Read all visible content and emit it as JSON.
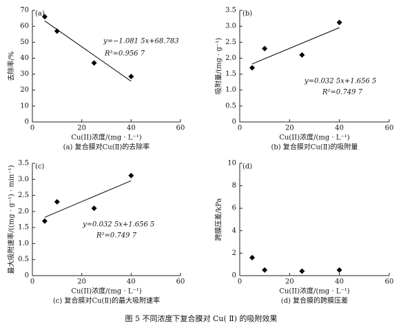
{
  "chart_data": [
    {
      "type": "scatter",
      "panel": "(a)",
      "xlabel": "Cu(II)浓度/(mg · L⁻¹)",
      "ylabel": "去除率/%",
      "caption": "(a) 复合膜对Cu(Ⅱ)的去除率",
      "x": [
        5,
        10,
        25,
        40
      ],
      "values": [
        66,
        57,
        37,
        28.5
      ],
      "color": "#000000",
      "xlim": [
        0,
        60
      ],
      "xticks": [
        0,
        20,
        40,
        60
      ],
      "ylim": [
        0,
        70
      ],
      "yticks": [
        0,
        10,
        20,
        30,
        40,
        50,
        60,
        70
      ],
      "trendline": {
        "x": [
          5,
          40
        ],
        "y": [
          63.38,
          25.52
        ]
      },
      "annotations": [
        "y=−1.081 5x+68.783",
        "R²=0.956 7"
      ]
    },
    {
      "type": "scatter",
      "panel": "(b)",
      "xlabel": "Cu(II)浓度/(mg · L⁻¹)",
      "ylabel": "吸附量/(mg · g⁻¹)",
      "caption": "(b) 复合膜对Cu(Ⅱ)的吸附量",
      "x": [
        5,
        10,
        25,
        40
      ],
      "values": [
        1.7,
        2.3,
        2.1,
        3.12
      ],
      "color": "#000000",
      "xlim": [
        0,
        60
      ],
      "xticks": [
        0,
        20,
        40,
        60
      ],
      "ylim": [
        0,
        3.5
      ],
      "yticks": [
        0,
        0.5,
        {
          "value": 1,
          "label": "1.0"
        },
        1.5,
        {
          "value": 2,
          "label": "2.0"
        },
        2.5,
        {
          "value": 3,
          "label": "3.0"
        },
        3.5
      ],
      "trendline": {
        "x": [
          5,
          40
        ],
        "y": [
          1.819,
          2.957
        ]
      },
      "annotations": [
        "y=0.032 5x+1.656 5",
        "R²=0.749 7"
      ]
    },
    {
      "type": "scatter",
      "panel": "(c)",
      "xlabel": "Cu(II)浓度/(mg · L⁻¹)",
      "ylabel": "最大吸附速率/((mg · g⁻¹) · min⁻¹)",
      "caption": "(c) 复合膜对Cu(Ⅱ)的最大吸附速率",
      "x": [
        5,
        10,
        25,
        40
      ],
      "values": [
        1.7,
        2.3,
        2.1,
        3.12
      ],
      "color": "#000000",
      "xlim": [
        0,
        60
      ],
      "xticks": [
        0,
        20,
        40,
        60
      ],
      "ylim": [
        0,
        3.5
      ],
      "yticks": [
        0,
        0.5,
        {
          "value": 1,
          "label": "1.0"
        },
        1.5,
        {
          "value": 2,
          "label": "2.0"
        },
        2.5,
        {
          "value": 3,
          "label": "3.0"
        },
        3.5
      ],
      "trendline": {
        "x": [
          5,
          40
        ],
        "y": [
          1.819,
          2.957
        ]
      },
      "annotations": [
        "y=0.032 5x+1.656 5",
        "R²=0.749 7"
      ]
    },
    {
      "type": "scatter",
      "panel": "(d)",
      "xlabel": "Cu(II)浓度/(mg · L⁻¹)",
      "ylabel": "跨膜压差/kPa",
      "caption": "(d) 复合膜的跨膜压差",
      "x": [
        5,
        10,
        25,
        40
      ],
      "values": [
        1.6,
        0.5,
        0.4,
        0.5
      ],
      "color": "#000000",
      "xlim": [
        0,
        60
      ],
      "xticks": [
        0,
        20,
        40,
        60
      ],
      "ylim": [
        0,
        10
      ],
      "yticks": [
        0,
        2,
        4,
        6,
        8,
        10
      ],
      "annotations": []
    }
  ],
  "figure_caption": "图 5    不同浓度下复合膜对 Cu( Ⅱ) 的吸附效果"
}
